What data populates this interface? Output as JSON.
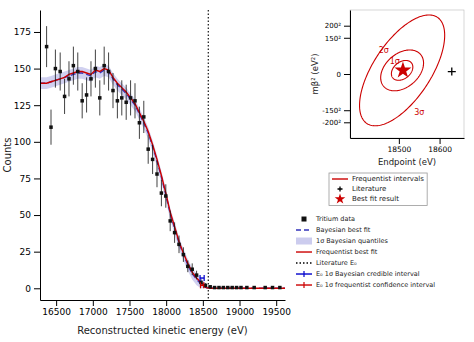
{
  "chart_data": [
    {
      "type": "line",
      "xlabel": "Reconstructed kinetic energy (eV)",
      "ylabel": "Counts",
      "xlim": [
        16280,
        19620
      ],
      "ylim": [
        -8,
        190
      ],
      "xticks": [
        16500,
        17000,
        17500,
        18000,
        18500,
        19000,
        19500
      ],
      "yticks": [
        0,
        25,
        50,
        75,
        100,
        125,
        150,
        175
      ],
      "legend": "right",
      "series": [
        {
          "name": "Tritium data",
          "type": "scatter",
          "marker": "square",
          "color": "#111111",
          "x": [
            16370,
            16430,
            16490,
            16555,
            16615,
            16675,
            16735,
            16795,
            16855,
            16915,
            16975,
            17035,
            17095,
            17155,
            17215,
            17275,
            17335,
            17395,
            17455,
            17515,
            17575,
            17635,
            17695,
            17755,
            17815,
            17875,
            17935,
            17995,
            18055,
            18115,
            18175,
            18235,
            18295,
            18355,
            18415,
            18475,
            18535,
            18600,
            18660,
            18720,
            18780,
            18840,
            18900,
            18960,
            19020,
            19100,
            19200,
            19350,
            19450,
            19550
          ],
          "values": [
            165,
            110,
            150,
            148,
            131,
            143,
            152,
            148,
            128,
            132,
            143,
            150,
            130,
            152,
            148,
            135,
            128,
            130,
            127,
            130,
            128,
            113,
            117,
            95,
            88,
            78,
            65,
            63,
            46,
            38,
            30,
            23,
            15,
            13,
            9,
            4,
            2,
            1,
            0.5,
            0.5,
            0.5,
            0.5,
            0.5,
            0.5,
            0.5,
            0.5,
            0.5,
            0.5,
            0.5,
            0.5
          ],
          "error_lo": [
            14,
            12,
            13,
            13,
            12,
            12,
            13,
            13,
            12,
            12,
            12,
            13,
            12,
            13,
            13,
            12,
            12,
            12,
            12,
            12,
            12,
            11,
            11,
            10,
            10,
            9,
            9,
            8,
            7,
            7,
            6,
            5,
            4,
            4,
            3,
            2,
            1.5,
            1.0,
            0.5,
            0.5,
            0.5,
            0.5,
            0.5,
            0.5,
            0.5,
            0.5,
            0.5,
            0.5,
            0.5,
            0.5
          ],
          "error_hi": [
            14,
            12,
            13,
            13,
            12,
            12,
            13,
            13,
            12,
            12,
            12,
            13,
            12,
            13,
            13,
            12,
            12,
            12,
            12,
            12,
            12,
            11,
            11,
            10,
            10,
            9,
            9,
            8,
            7,
            7,
            6,
            5,
            4,
            4,
            3,
            2,
            1.5,
            1.0,
            0.5,
            0.5,
            0.5,
            0.5,
            0.5,
            0.5,
            0.5,
            0.5,
            0.5,
            0.5,
            0.5,
            0.5
          ]
        },
        {
          "name": "Bayesian best fit",
          "type": "line",
          "line_style": "dashed",
          "color": "#3333bb",
          "x": [
            16280,
            16370,
            16430,
            16490,
            16555,
            16615,
            16675,
            16735,
            16795,
            16855,
            16915,
            16975,
            17035,
            17095,
            17155,
            17215,
            17275,
            17335,
            17395,
            17455,
            17515,
            17575,
            17635,
            17695,
            17755,
            17815,
            17875,
            17935,
            17995,
            18055,
            18115,
            18175,
            18235,
            18295,
            18355,
            18415,
            18475,
            18510,
            18530,
            18560,
            18600,
            18700,
            18900,
            19100,
            19300,
            19500,
            19620
          ],
          "values": [
            140,
            140,
            141,
            142,
            143,
            144,
            145,
            146,
            147,
            147,
            146,
            145,
            148,
            147,
            149,
            148,
            143,
            139,
            136,
            133,
            129,
            125,
            119,
            113,
            106,
            97,
            87,
            76,
            64,
            51,
            41,
            31,
            23,
            16,
            10,
            6,
            3,
            1.5,
            0.8,
            0.2,
            0,
            0,
            0,
            0,
            0,
            0,
            0
          ]
        },
        {
          "name": "1σ Bayesian quantiles",
          "type": "area",
          "color": "#9999dd",
          "x": [
            16280,
            16370,
            16430,
            16490,
            16555,
            16615,
            16675,
            16735,
            16795,
            16855,
            16915,
            16975,
            17035,
            17095,
            17155,
            17215,
            17275,
            17335,
            17395,
            17455,
            17515,
            17575,
            17635,
            17695,
            17755,
            17815,
            17875,
            17935,
            17995,
            18055,
            18115,
            18175,
            18235,
            18295,
            18355,
            18415,
            18475,
            18510,
            18530,
            18560,
            18600,
            18700,
            18900,
            19100,
            19300,
            19500,
            19620
          ],
          "lower": [
            136,
            136,
            137,
            138,
            139,
            140,
            141,
            142,
            143,
            143,
            142,
            141,
            144,
            143,
            145,
            144,
            139,
            135,
            132,
            129,
            125,
            121,
            115,
            109,
            102,
            93,
            83,
            72,
            60,
            47,
            37,
            27,
            19,
            12,
            6,
            2,
            0,
            0,
            0,
            0,
            0,
            0,
            0,
            0,
            0,
            0,
            0
          ],
          "upper": [
            144,
            144,
            145,
            146,
            147,
            148,
            149,
            150,
            151,
            151,
            150,
            149,
            152,
            151,
            153,
            152,
            147,
            143,
            140,
            137,
            133,
            129,
            123,
            117,
            110,
            101,
            91,
            80,
            68,
            55,
            45,
            35,
            27,
            20,
            14,
            10,
            7,
            5,
            4,
            1,
            0,
            0,
            0,
            0,
            0,
            0,
            0
          ]
        },
        {
          "name": "Frequentist best fit",
          "type": "line",
          "line_style": "solid",
          "color": "#cc0000",
          "x": [
            16280,
            16370,
            16430,
            16490,
            16555,
            16615,
            16675,
            16735,
            16795,
            16855,
            16915,
            16975,
            17035,
            17095,
            17155,
            17215,
            17275,
            17335,
            17395,
            17455,
            17515,
            17575,
            17635,
            17695,
            17755,
            17815,
            17875,
            17935,
            17995,
            18055,
            18115,
            18175,
            18235,
            18295,
            18355,
            18415,
            18475,
            18510,
            18530,
            18560,
            18600,
            18700,
            18900,
            19100,
            19300,
            19500,
            19620
          ],
          "values": [
            140,
            140,
            141,
            142,
            143,
            144,
            146,
            147,
            148,
            148,
            147,
            146,
            149,
            148,
            150,
            149,
            144,
            140,
            137,
            134,
            130,
            126,
            120,
            114,
            107,
            98,
            88,
            77,
            65,
            52,
            42,
            32,
            24,
            17,
            11,
            7,
            4,
            2,
            1,
            0.3,
            0,
            0,
            0,
            0,
            0,
            0,
            0
          ]
        },
        {
          "name": "Literature E₀",
          "type": "vline",
          "line_style": "dotted",
          "color": "#000000",
          "x": 18574
        },
        {
          "name": "E₀ 1σ Bayesian credible interval",
          "type": "interval",
          "color": "#0000cc",
          "x": 18490,
          "error": 28,
          "y": 7
        },
        {
          "name": "E₀ 1σ frequentist confidence interval",
          "type": "interval",
          "color": "#cc0000",
          "x": 18490,
          "error": 22,
          "y": 2
        }
      ]
    },
    {
      "type": "contour",
      "xlabel": "Endpoint (eV)",
      "ylabel": "mβ² (eV²)",
      "xlim": [
        18380,
        18660
      ],
      "ylim": [
        -265,
        265
      ],
      "xticks": [
        18500,
        18600
      ],
      "yticks": [
        {
          "value": -200,
          "label": "-200²"
        },
        {
          "value": -150,
          "label": "-150²"
        },
        0,
        {
          "value": 150,
          "label": "150²"
        },
        {
          "value": 200,
          "label": "200²"
        }
      ],
      "legend": "bottom",
      "series": [
        {
          "name": "Frequentist intervals",
          "type": "ellipse",
          "color": "#cc0000",
          "center": [
            18508,
            15
          ],
          "angle": -18,
          "widths": [
            48,
            95,
            155
          ],
          "heights": [
            85,
            175,
            480
          ]
        },
        {
          "name": "Literature",
          "type": "scatter",
          "marker": "plus",
          "color": "#000000",
          "x": [
            18630
          ],
          "values": [
            10
          ]
        },
        {
          "name": "Best fit result",
          "type": "scatter",
          "marker": "star",
          "color": "#cc0000",
          "x": [
            18510
          ],
          "values": [
            15
          ]
        }
      ],
      "annotations": [
        {
          "text": "1σ",
          "x": 18490,
          "y": 43,
          "color": "#cc0000"
        },
        {
          "text": "2σ",
          "x": 18463,
          "y": 85,
          "color": "#cc0000"
        },
        {
          "text": "3σ",
          "x": 18550,
          "y": -170,
          "color": "#cc0000"
        }
      ]
    }
  ]
}
